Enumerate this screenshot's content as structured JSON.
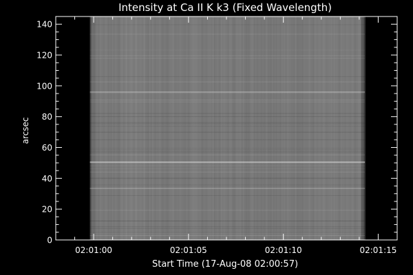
{
  "chart_data": {
    "type": "heatmap",
    "title": "Intensity at Ca II K k3 (Fixed Wavelength)",
    "xlabel": "Start Time (17-Aug-08 02:00:57)",
    "ylabel": "arcsec",
    "x_unit": "seconds",
    "xlim": [
      58.0,
      76.0
    ],
    "ylim": [
      0,
      145
    ],
    "x_ticks": [
      {
        "value": 60,
        "label": "02:01:00"
      },
      {
        "value": 65,
        "label": "02:01:05"
      },
      {
        "value": 70,
        "label": "02:01:10"
      },
      {
        "value": 75,
        "label": "02:01:15"
      }
    ],
    "x_minor_step": 1,
    "y_ticks": [
      0,
      20,
      40,
      60,
      80,
      100,
      120,
      140
    ],
    "y_minor_step": 5,
    "grid": false,
    "colormap": "grayscale",
    "data_extent": {
      "x": [
        59.8,
        74.3
      ],
      "y": [
        0,
        145
      ]
    },
    "bright_rows_arcsec": [
      96,
      50.5,
      33.5
    ],
    "colors": {
      "background": "#000000",
      "foreground": "#ffffff",
      "image_base": "#7d7d7d"
    }
  }
}
